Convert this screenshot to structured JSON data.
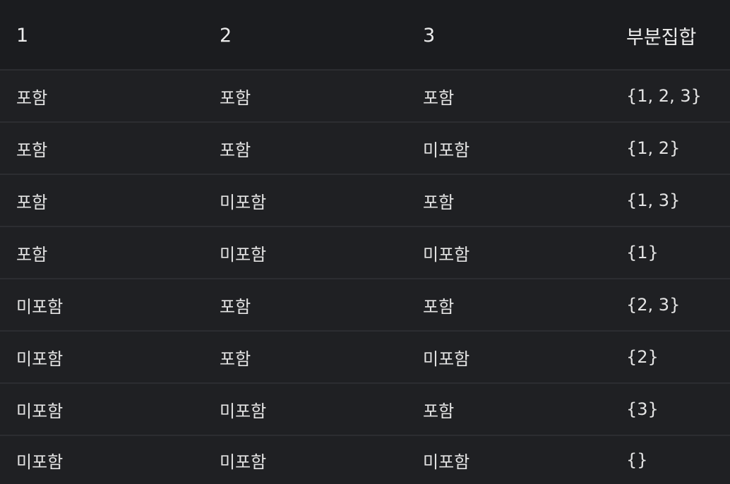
{
  "table": {
    "headers": [
      "1",
      "2",
      "3",
      "부분집합"
    ],
    "rows": [
      [
        "포함",
        "포함",
        "포함",
        "{1, 2, 3}"
      ],
      [
        "포함",
        "포함",
        "미포함",
        "{1, 2}"
      ],
      [
        "포함",
        "미포함",
        "포함",
        "{1, 3}"
      ],
      [
        "포함",
        "미포함",
        "미포함",
        "{1}"
      ],
      [
        "미포함",
        "포함",
        "포함",
        "{2, 3}"
      ],
      [
        "미포함",
        "포함",
        "미포함",
        "{2}"
      ],
      [
        "미포함",
        "미포함",
        "포함",
        "{3}"
      ],
      [
        "미포함",
        "미포함",
        "미포함",
        "{}"
      ]
    ]
  }
}
